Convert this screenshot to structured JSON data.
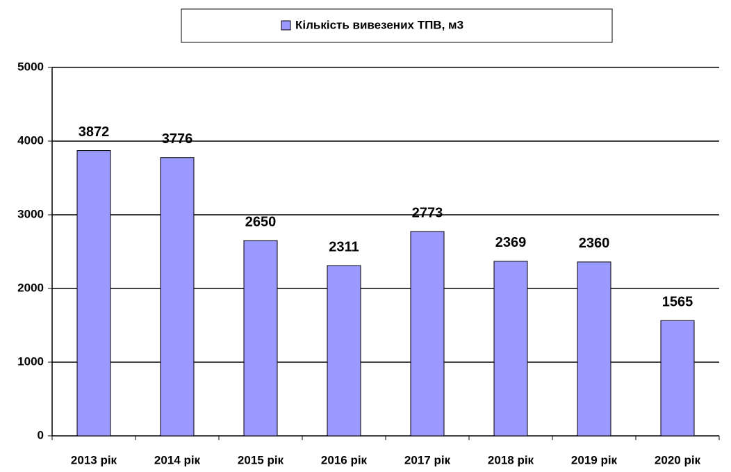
{
  "chart_data": {
    "type": "bar",
    "series": [
      {
        "name": "Кількість вивезених ТПВ, м3",
        "color": "#9999ff",
        "values": [
          3872,
          3776,
          2650,
          2311,
          2773,
          2369,
          2360,
          1565
        ]
      }
    ],
    "categories": [
      "2013 рік",
      "2014 рік",
      "2015 рік",
      "2016 рік",
      "2017 рік",
      "2018 рік",
      "2019 рік",
      "2020 рік"
    ],
    "ylim": [
      0,
      5000
    ],
    "yticks": [
      0,
      1000,
      2000,
      3000,
      4000,
      5000
    ],
    "grid": true,
    "legend": "top"
  }
}
